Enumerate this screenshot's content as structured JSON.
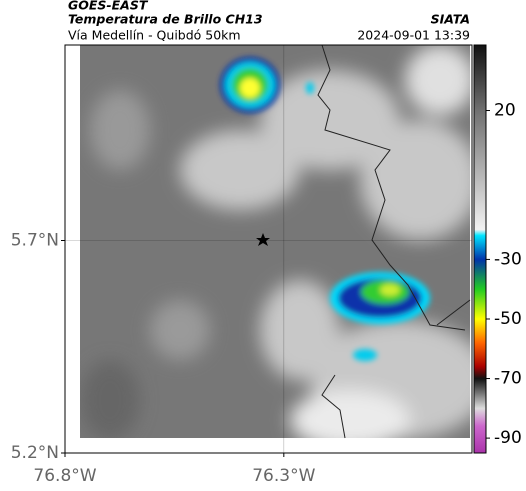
{
  "header": {
    "satellite": "GOES-EAST",
    "product": "Temperatura de Brillo CH13",
    "source": "SIATA",
    "route": "Vía Medellín - Quibdó 50km",
    "datetime": "2024-09-01 13:39"
  },
  "map": {
    "lon_range": [
      -76.8,
      -75.87
    ],
    "lat_range": [
      5.2,
      6.16
    ],
    "lon_ticks": [
      {
        "value": -76.8,
        "label": "76.8°W"
      },
      {
        "value": -76.3,
        "label": "76.3°W"
      }
    ],
    "lat_ticks": [
      {
        "value": 5.2,
        "label": "5.2°N"
      },
      {
        "value": 5.7,
        "label": "5.7°N"
      }
    ],
    "grid": true
  },
  "colorbar": {
    "range": [
      -95,
      42
    ],
    "ticks": [
      20,
      -30,
      -50,
      -70,
      -90
    ],
    "stops": [
      {
        "value": 42,
        "color": "#111111"
      },
      {
        "value": 20,
        "color": "#707070"
      },
      {
        "value": -20,
        "color": "#f2f2f2"
      },
      {
        "value": -22,
        "color": "#00e5ff"
      },
      {
        "value": -30,
        "color": "#0033aa"
      },
      {
        "value": -40,
        "color": "#22cc22"
      },
      {
        "value": -50,
        "color": "#ffff00"
      },
      {
        "value": -58,
        "color": "#ff6600"
      },
      {
        "value": -66,
        "color": "#aa0000"
      },
      {
        "value": -70,
        "color": "#111111"
      },
      {
        "value": -80,
        "color": "#dddddd"
      },
      {
        "value": -86,
        "color": "#cc66cc"
      },
      {
        "value": -95,
        "color": "#aa33aa"
      }
    ]
  }
}
